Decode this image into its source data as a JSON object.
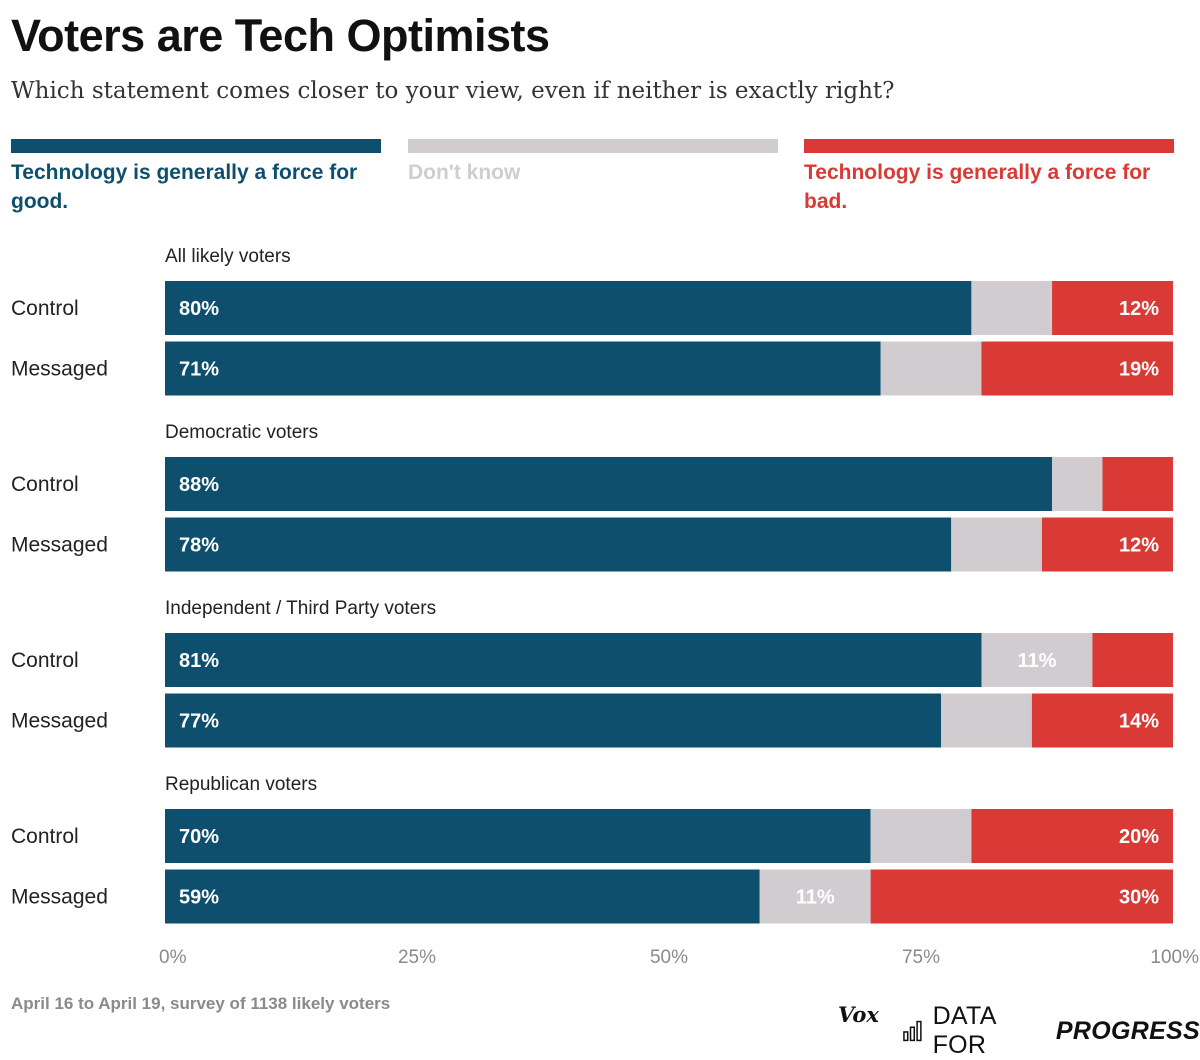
{
  "title": "Voters are Tech Optimists",
  "subtitle": "Which statement comes closer to your view, even if neither is exactly right?",
  "legend": [
    {
      "label": "Technology is generally a force for good.",
      "color": "#0e4f6e"
    },
    {
      "label": "Don't know",
      "color": "#d0cccf"
    },
    {
      "label": "Technology is generally a force for bad.",
      "color": "#d93a35"
    }
  ],
  "chart_data": {
    "type": "bar",
    "orientation": "horizontal",
    "stacked": true,
    "xlim": [
      0,
      100
    ],
    "x_ticks": [
      "0%",
      "25%",
      "50%",
      "75%",
      "100%"
    ],
    "series": [
      {
        "name": "Technology is generally a force for good.",
        "color": "#0e4f6e"
      },
      {
        "name": "Don't know",
        "color": "#d0cccf"
      },
      {
        "name": "Technology is generally a force for bad.",
        "color": "#d93a35"
      }
    ],
    "groups": [
      {
        "title": "All likely voters",
        "rows": [
          {
            "label": "Control",
            "values": [
              80,
              8,
              12
            ],
            "labels": [
              "80%",
              "",
              "12%"
            ]
          },
          {
            "label": "Messaged",
            "values": [
              71,
              10,
              19
            ],
            "labels": [
              "71%",
              "",
              "19%"
            ]
          }
        ]
      },
      {
        "title": "Democratic voters",
        "rows": [
          {
            "label": "Control",
            "values": [
              88,
              5,
              7
            ],
            "labels": [
              "88%",
              "",
              ""
            ]
          },
          {
            "label": "Messaged",
            "values": [
              78,
              9,
              12
            ],
            "labels": [
              "78%",
              "",
              "12%"
            ]
          }
        ]
      },
      {
        "title": "Independent / Third Party voters",
        "rows": [
          {
            "label": "Control",
            "values": [
              81,
              11,
              7
            ],
            "labels": [
              "81%",
              "11%",
              ""
            ]
          },
          {
            "label": "Messaged",
            "values": [
              77,
              9,
              14
            ],
            "labels": [
              "77%",
              "",
              "14%"
            ]
          }
        ]
      },
      {
        "title": "Republican voters",
        "rows": [
          {
            "label": "Control",
            "values": [
              70,
              10,
              20
            ],
            "labels": [
              "70%",
              "",
              "20%"
            ]
          },
          {
            "label": "Messaged",
            "values": [
              59,
              11,
              30
            ],
            "labels": [
              "59%",
              "11%",
              "30%"
            ]
          }
        ]
      }
    ]
  },
  "footnote": "April 16 to April 19, survey of 1138 likely voters",
  "branding": {
    "vox": "Vox",
    "dfp_regular": "DATA FOR",
    "dfp_bold": "PROGRESS"
  }
}
